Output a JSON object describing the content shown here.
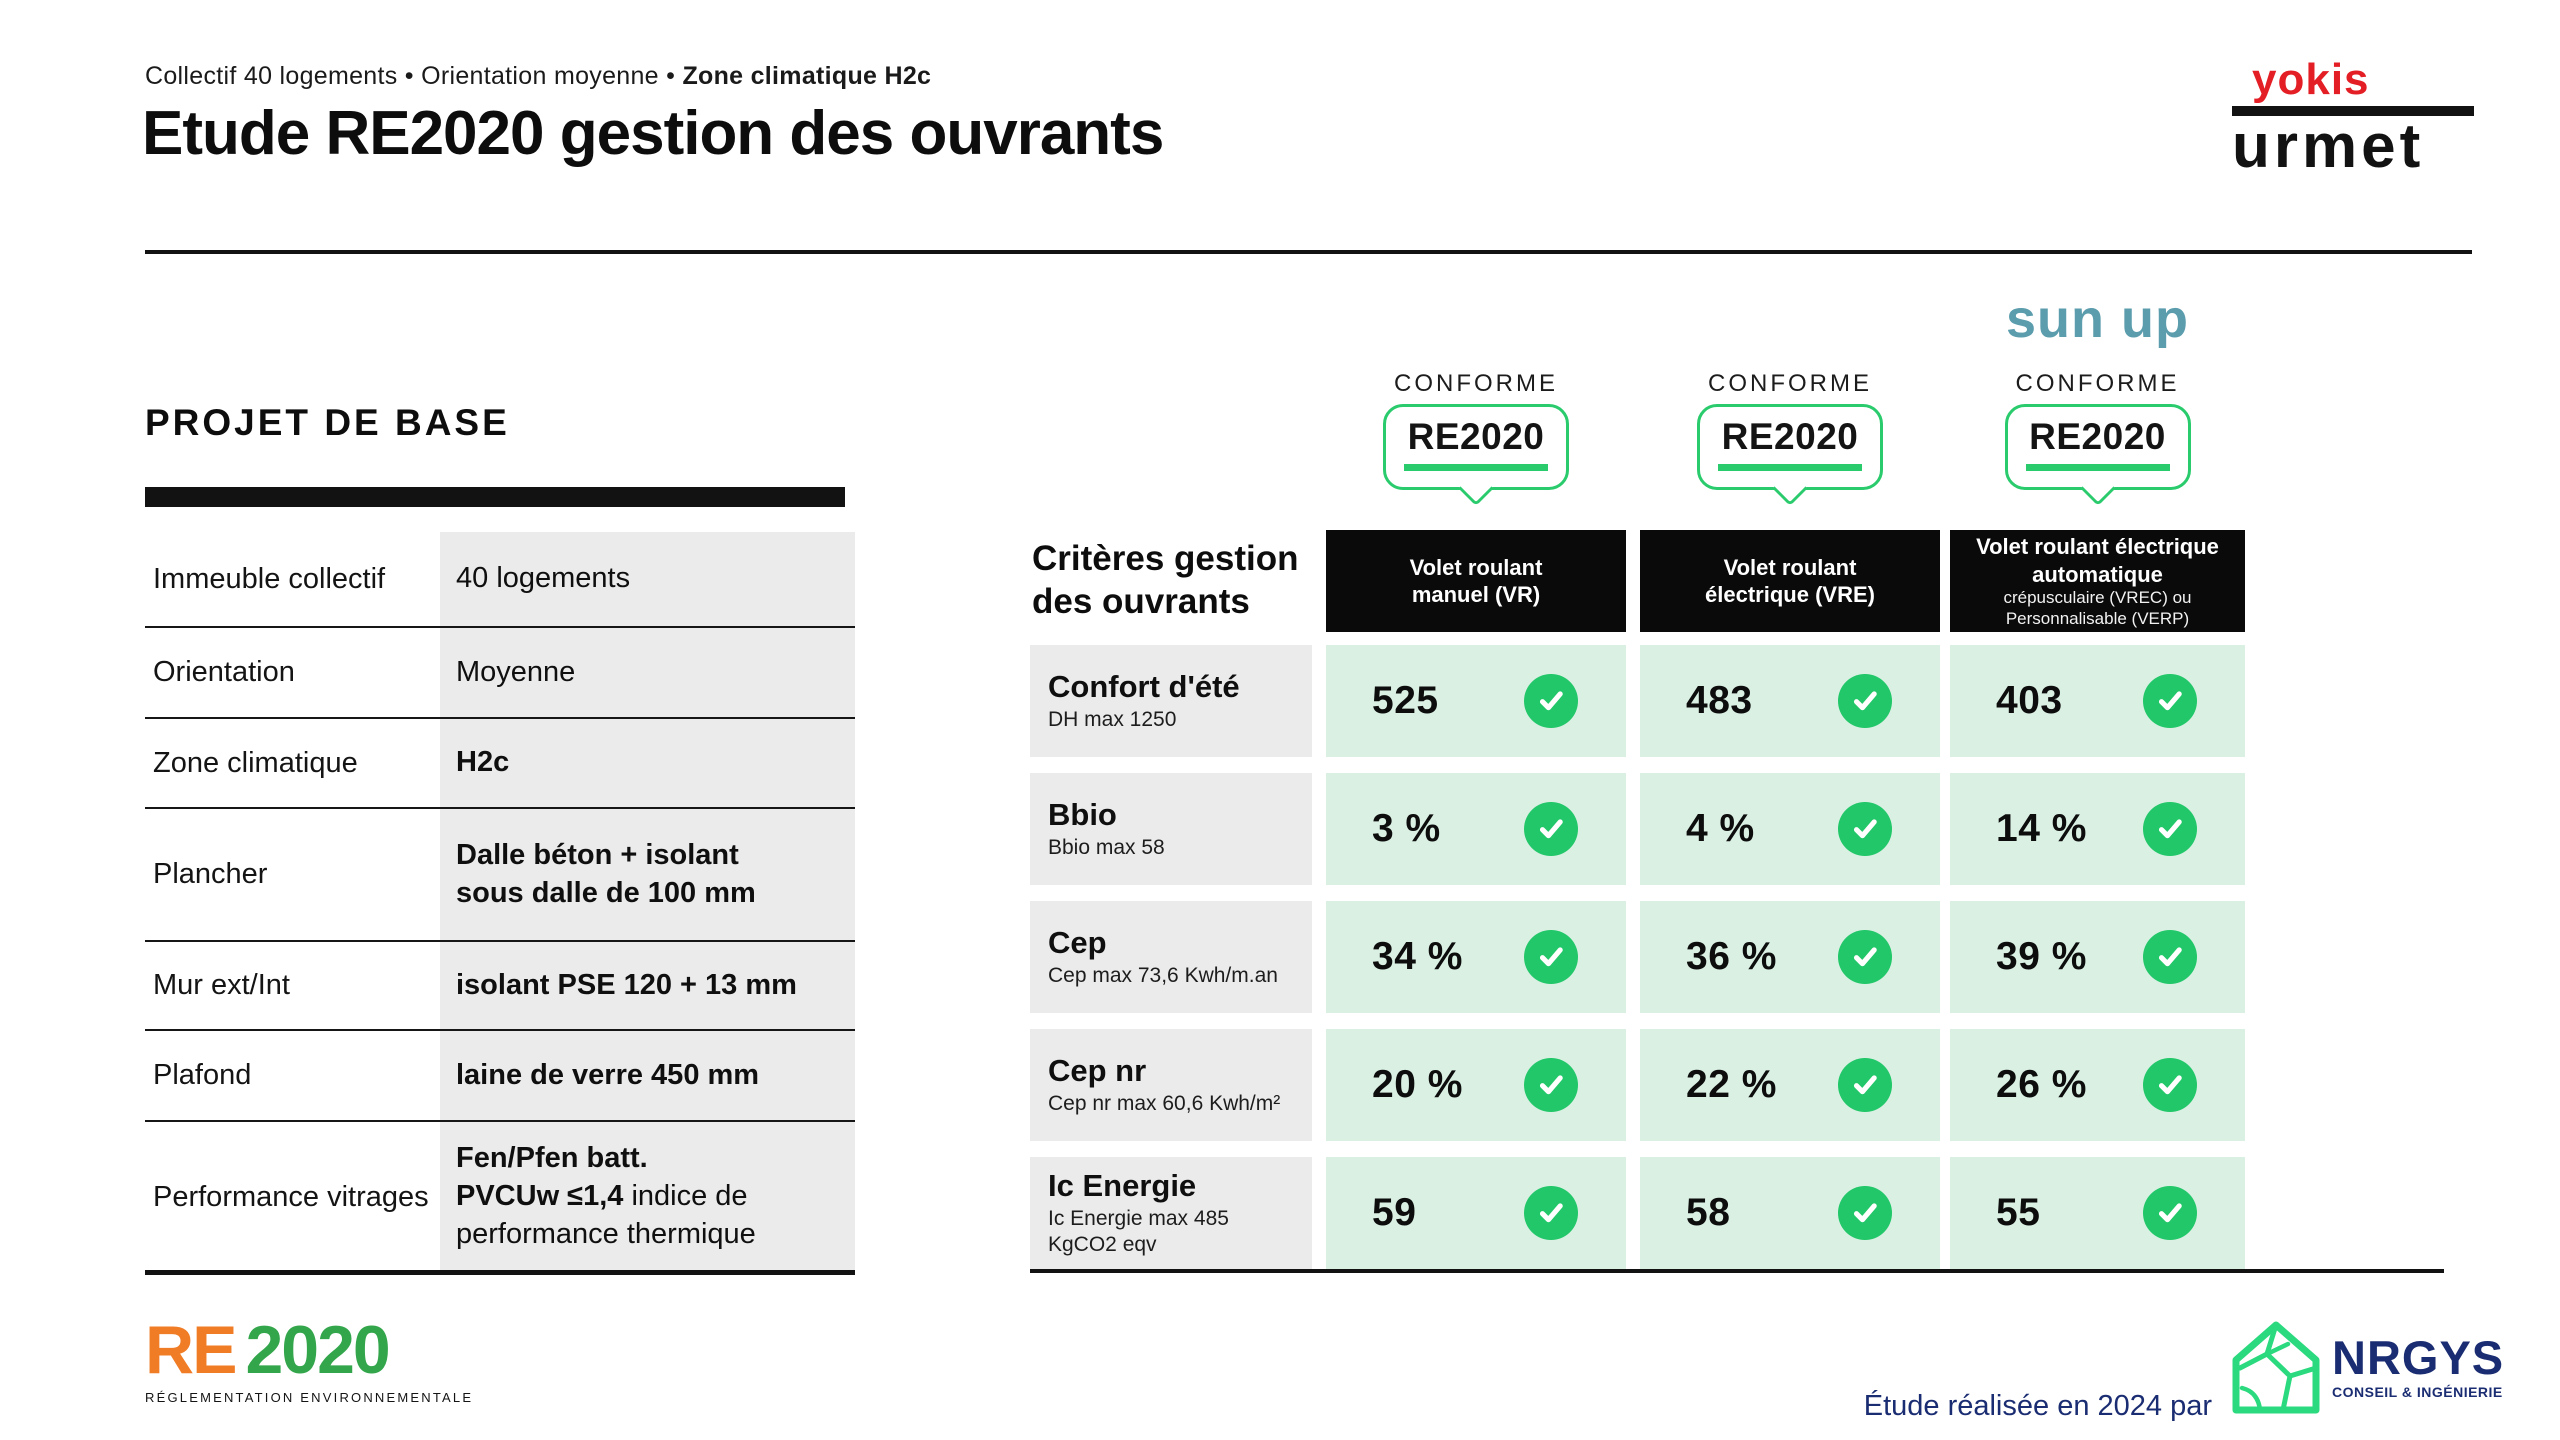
{
  "header": {
    "breadcrumb": {
      "regular": "Collectif 40 logements • Orientation moyenne • ",
      "bold": "Zone climatique H2c"
    },
    "title": "Etude RE2020 gestion des ouvrants",
    "brand": {
      "yokis": "yokis",
      "urmet": "urmet"
    }
  },
  "base_project": {
    "heading": "PROJET DE BASE",
    "rows": [
      {
        "label": "Immeuble collectif",
        "lines": [
          [
            {
              "t": "40 logements",
              "b": false
            }
          ]
        ]
      },
      {
        "label": "Orientation",
        "lines": [
          [
            {
              "t": "Moyenne",
              "b": false
            }
          ]
        ]
      },
      {
        "label": "Zone climatique",
        "lines": [
          [
            {
              "t": "H2c",
              "b": true
            }
          ]
        ]
      },
      {
        "label": "Plancher",
        "lines": [
          [
            {
              "t": "Dalle béton + isolant",
              "b": true
            }
          ],
          [
            {
              "t": "sous dalle de 100 mm",
              "b": true
            }
          ]
        ]
      },
      {
        "label": "Mur ext/Int",
        "lines": [
          [
            {
              "t": "isolant PSE 120 + 13 mm",
              "b": true
            }
          ]
        ]
      },
      {
        "label": "Plafond",
        "lines": [
          [
            {
              "t": "laine de verre 450 mm",
              "b": true
            }
          ]
        ]
      },
      {
        "label": "Performance vitrages",
        "lines": [
          [
            {
              "t": "Fen/Pfen batt.",
              "b": true
            }
          ],
          [
            {
              "t": "PVCUw ≤1,4",
              "b": true
            },
            {
              "t": " indice de",
              "b": false
            }
          ],
          [
            {
              "t": "performance thermique",
              "b": false
            }
          ]
        ]
      }
    ]
  },
  "comparison": {
    "corner_label_lines": [
      "Critères gestion",
      "des ouvrants"
    ],
    "conforme": "CONFORME",
    "badge": "RE2020",
    "sunup": "sun up",
    "columns": [
      {
        "title_lines": [
          "Volet roulant",
          "manuel (VR)"
        ],
        "sub_lines": []
      },
      {
        "title_lines": [
          "Volet roulant",
          "électrique (VRE)"
        ],
        "sub_lines": []
      },
      {
        "title_lines": [
          "Volet roulant électrique",
          "automatique"
        ],
        "sub_lines": [
          "crépusculaire (VREC) ou",
          "Personnalisable (VERP)"
        ]
      }
    ],
    "rows": [
      {
        "name": "Confort d'été",
        "sub_lines": [
          "DH max 1250"
        ],
        "values": [
          "525",
          "483",
          "403"
        ]
      },
      {
        "name": "Bbio",
        "sub_lines": [
          "Bbio max 58"
        ],
        "values": [
          "3 %",
          "4 %",
          "14 %"
        ]
      },
      {
        "name": "Cep",
        "sub_lines": [
          "Cep max 73,6 Kwh/m.an"
        ],
        "values": [
          "34 %",
          "36 %",
          "39 %"
        ]
      },
      {
        "name": "Cep nr",
        "sub_lines": [
          "Cep nr max 60,6 Kwh/m²"
        ],
        "values": [
          "20 %",
          "22 %",
          "26 %"
        ]
      },
      {
        "name": "Ic Energie",
        "sub_lines": [
          "Ic Energie max 485",
          "KgCO2 eqv"
        ],
        "values": [
          "59",
          "58",
          "55"
        ]
      }
    ]
  },
  "footer": {
    "re2020": {
      "re": "RE",
      "year": "2020",
      "sub": "RÉGLEMENTATION ENVIRONNEMENTALE"
    },
    "credit": "Étude réalisée en 2024 par",
    "nrgys": {
      "name": "NRGYS",
      "sub": "CONSEIL & INGÉNIERIE"
    }
  },
  "colors": {
    "check_green": "#21c768",
    "cell_green": "#d9f0e3",
    "cell_gray": "#ebebeb",
    "badge_green": "#2acb6c",
    "sunup_teal": "#5b9dad",
    "yokis_red": "#e41e25",
    "re_orange": "#f07c26",
    "re_green": "#33a64c",
    "navy": "#1b2d72",
    "nrgys_green": "#2bd97e"
  }
}
